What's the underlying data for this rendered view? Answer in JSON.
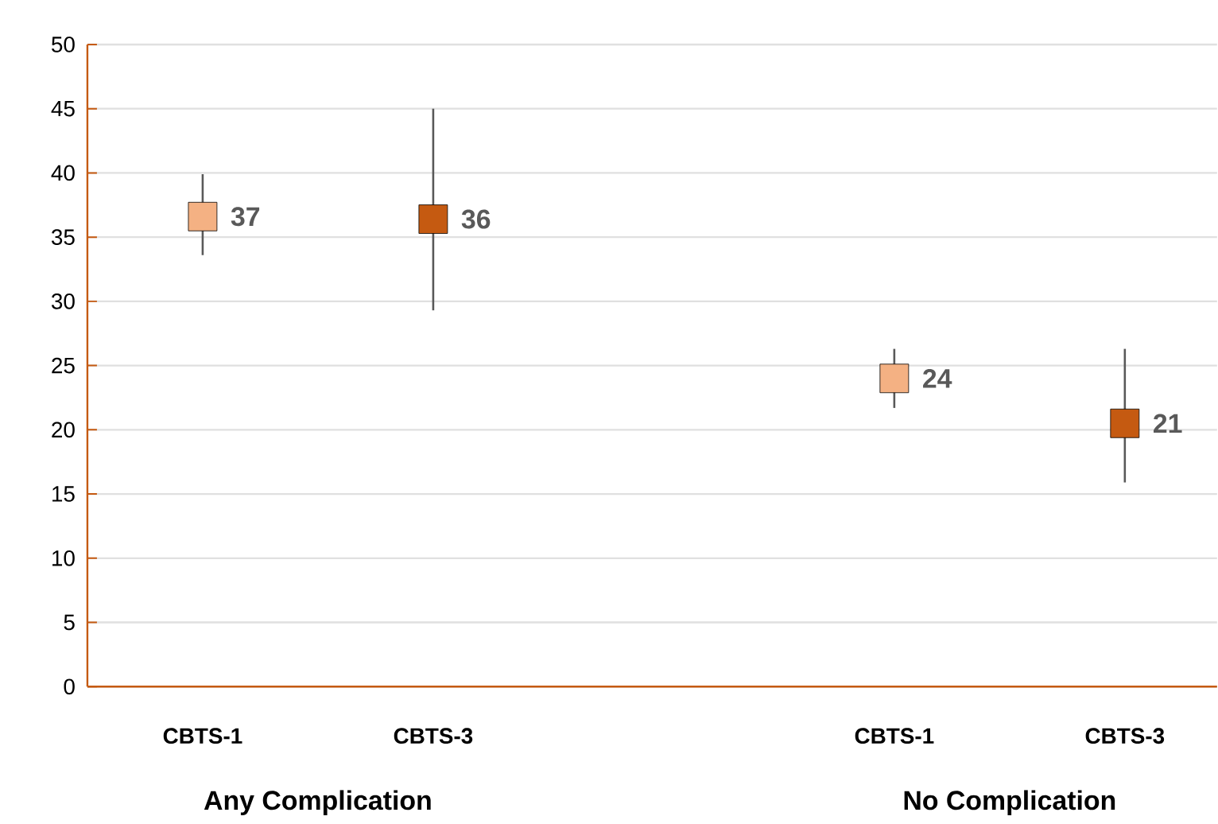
{
  "chart_data": {
    "type": "scatter",
    "categories": [
      "CBTS-1",
      "CBTS-3",
      null,
      "CBTS-1",
      "CBTS-3"
    ],
    "values": [
      36.6,
      36.4,
      null,
      24.0,
      20.5
    ],
    "colors": [
      "#f4b183",
      "#c55a11",
      null,
      "#f4b183",
      "#c55a11"
    ],
    "errors": [
      [
        33.6,
        39.9
      ],
      [
        29.3,
        45.0
      ],
      null,
      [
        21.7,
        26.3
      ],
      [
        15.9,
        26.3
      ]
    ],
    "value_labels": [
      "37",
      "36",
      null,
      "24",
      "21"
    ],
    "ylim": [
      0,
      50
    ],
    "yticks": [
      0,
      5,
      10,
      15,
      20,
      25,
      30,
      35,
      40,
      45,
      50
    ],
    "grid": "y",
    "marker": "square",
    "annotations": [
      "Any Complication",
      "No Complication"
    ]
  }
}
